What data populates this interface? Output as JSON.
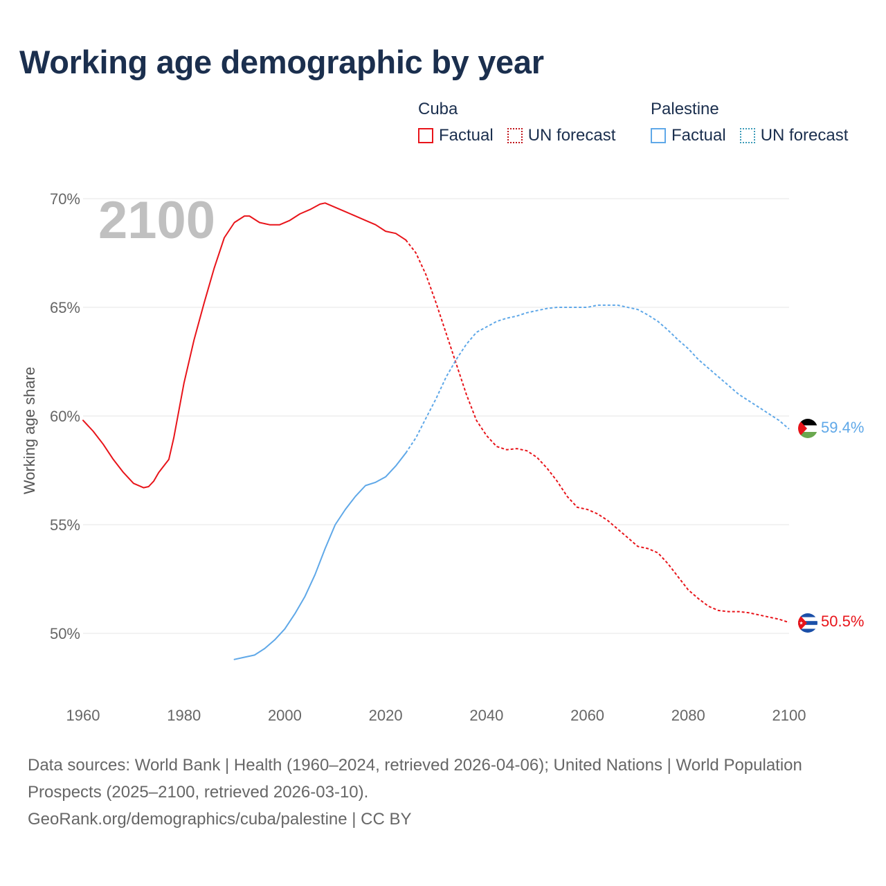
{
  "title": "Working age demographic by year",
  "legend": {
    "groups": [
      {
        "name": "Cuba",
        "color": "#e8141a",
        "factual_label": "Factual",
        "forecast_label": "UN forecast"
      },
      {
        "name": "Palestine",
        "color": "#5fa8e8",
        "factual_label": "Factual",
        "forecast_label": "UN forecast"
      }
    ]
  },
  "year_overlay": "2100",
  "sources": {
    "line1": "Data sources: World Bank | Health (1960–2024, retrieved 2026-04-06); United Nations | World Population Prospects (2025–2100, retrieved 2026-03-10).",
    "line2": "GeoRank.org/demographics/cuba/palestine | CC BY"
  },
  "chart_data": {
    "type": "line",
    "title": "Working age demographic by year",
    "xlabel": "",
    "ylabel": "Working age share",
    "xlim": [
      1960,
      2100
    ],
    "ylim": [
      47,
      70.5
    ],
    "x_ticks": [
      1960,
      1980,
      2000,
      2020,
      2040,
      2060,
      2080,
      2100
    ],
    "x_tick_labels": [
      "1960",
      "1980",
      "2000",
      "2020",
      "2040",
      "2060",
      "2080",
      "2100"
    ],
    "y_ticks": [
      50,
      55,
      60,
      65,
      70
    ],
    "y_tick_labels": [
      "50%",
      "55%",
      "60%",
      "65%",
      "70%"
    ],
    "grid": true,
    "series": [
      {
        "name": "Cuba",
        "color": "#e8141a",
        "end_label": "50.5%",
        "forecast_start": 2024,
        "points": [
          [
            1960,
            59.8
          ],
          [
            1962,
            59.3
          ],
          [
            1964,
            58.7
          ],
          [
            1966,
            58.0
          ],
          [
            1968,
            57.4
          ],
          [
            1970,
            56.9
          ],
          [
            1972,
            56.7
          ],
          [
            1973,
            56.75
          ],
          [
            1974,
            57.0
          ],
          [
            1975,
            57.4
          ],
          [
            1977,
            58.0
          ],
          [
            1978,
            59.0
          ],
          [
            1980,
            61.5
          ],
          [
            1982,
            63.5
          ],
          [
            1984,
            65.2
          ],
          [
            1986,
            66.8
          ],
          [
            1988,
            68.2
          ],
          [
            1990,
            68.9
          ],
          [
            1992,
            69.2
          ],
          [
            1993,
            69.2
          ],
          [
            1995,
            68.9
          ],
          [
            1997,
            68.8
          ],
          [
            1999,
            68.8
          ],
          [
            2001,
            69.0
          ],
          [
            2003,
            69.3
          ],
          [
            2005,
            69.5
          ],
          [
            2007,
            69.75
          ],
          [
            2008,
            69.8
          ],
          [
            2010,
            69.6
          ],
          [
            2012,
            69.4
          ],
          [
            2014,
            69.2
          ],
          [
            2016,
            69.0
          ],
          [
            2018,
            68.8
          ],
          [
            2020,
            68.5
          ],
          [
            2022,
            68.4
          ],
          [
            2024,
            68.1
          ],
          [
            2026,
            67.5
          ],
          [
            2028,
            66.5
          ],
          [
            2030,
            65.2
          ],
          [
            2032,
            63.8
          ],
          [
            2034,
            62.4
          ],
          [
            2036,
            61.0
          ],
          [
            2038,
            59.8
          ],
          [
            2040,
            59.1
          ],
          [
            2042,
            58.6
          ],
          [
            2044,
            58.45
          ],
          [
            2046,
            58.5
          ],
          [
            2048,
            58.4
          ],
          [
            2050,
            58.1
          ],
          [
            2052,
            57.6
          ],
          [
            2054,
            57.0
          ],
          [
            2056,
            56.3
          ],
          [
            2058,
            55.8
          ],
          [
            2060,
            55.7
          ],
          [
            2062,
            55.5
          ],
          [
            2064,
            55.2
          ],
          [
            2066,
            54.8
          ],
          [
            2068,
            54.4
          ],
          [
            2070,
            54.0
          ],
          [
            2072,
            53.9
          ],
          [
            2074,
            53.7
          ],
          [
            2076,
            53.2
          ],
          [
            2078,
            52.6
          ],
          [
            2080,
            52.0
          ],
          [
            2082,
            51.6
          ],
          [
            2084,
            51.25
          ],
          [
            2086,
            51.05
          ],
          [
            2088,
            51.0
          ],
          [
            2090,
            51.0
          ],
          [
            2092,
            50.95
          ],
          [
            2094,
            50.85
          ],
          [
            2096,
            50.75
          ],
          [
            2098,
            50.65
          ],
          [
            2100,
            50.5
          ]
        ]
      },
      {
        "name": "Palestine",
        "color": "#5fa8e8",
        "end_label": "59.4%",
        "forecast_start": 2024,
        "points": [
          [
            1990,
            48.8
          ],
          [
            1992,
            48.9
          ],
          [
            1994,
            49.0
          ],
          [
            1996,
            49.3
          ],
          [
            1998,
            49.7
          ],
          [
            2000,
            50.2
          ],
          [
            2002,
            50.9
          ],
          [
            2004,
            51.7
          ],
          [
            2006,
            52.7
          ],
          [
            2008,
            53.9
          ],
          [
            2010,
            55.0
          ],
          [
            2012,
            55.7
          ],
          [
            2014,
            56.3
          ],
          [
            2016,
            56.8
          ],
          [
            2018,
            56.95
          ],
          [
            2020,
            57.2
          ],
          [
            2022,
            57.7
          ],
          [
            2024,
            58.3
          ],
          [
            2026,
            59.0
          ],
          [
            2028,
            59.9
          ],
          [
            2030,
            60.8
          ],
          [
            2032,
            61.8
          ],
          [
            2034,
            62.6
          ],
          [
            2036,
            63.3
          ],
          [
            2038,
            63.85
          ],
          [
            2040,
            64.1
          ],
          [
            2042,
            64.35
          ],
          [
            2044,
            64.5
          ],
          [
            2046,
            64.6
          ],
          [
            2048,
            64.75
          ],
          [
            2050,
            64.85
          ],
          [
            2052,
            64.95
          ],
          [
            2054,
            65.0
          ],
          [
            2056,
            65.0
          ],
          [
            2058,
            65.0
          ],
          [
            2060,
            65.0
          ],
          [
            2062,
            65.1
          ],
          [
            2064,
            65.1
          ],
          [
            2066,
            65.1
          ],
          [
            2068,
            65.0
          ],
          [
            2070,
            64.9
          ],
          [
            2072,
            64.65
          ],
          [
            2074,
            64.35
          ],
          [
            2076,
            63.95
          ],
          [
            2078,
            63.5
          ],
          [
            2080,
            63.1
          ],
          [
            2082,
            62.6
          ],
          [
            2084,
            62.2
          ],
          [
            2086,
            61.8
          ],
          [
            2088,
            61.4
          ],
          [
            2090,
            61.0
          ],
          [
            2092,
            60.7
          ],
          [
            2094,
            60.4
          ],
          [
            2096,
            60.1
          ],
          [
            2098,
            59.8
          ],
          [
            2100,
            59.4
          ]
        ]
      }
    ]
  }
}
